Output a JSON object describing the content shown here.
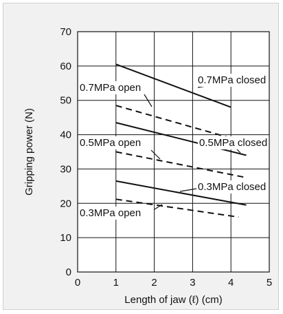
{
  "chart_data": {
    "type": "line",
    "xlabel": "Length of jaw (ℓ) (cm)",
    "ylabel": "Gripping power (N)",
    "xlim": [
      0,
      5
    ],
    "ylim": [
      0,
      70
    ],
    "xticks": [
      0,
      1,
      2,
      3,
      4,
      5
    ],
    "yticks": [
      0,
      10,
      20,
      30,
      40,
      50,
      60,
      70
    ],
    "grid": true,
    "series": [
      {
        "name": "0.7MPa closed",
        "style": "solid",
        "x": [
          1,
          4
        ],
        "y": [
          60.5,
          48
        ]
      },
      {
        "name": "0.7MPa open",
        "style": "dashed",
        "x": [
          1,
          4
        ],
        "y": [
          48.5,
          39
        ]
      },
      {
        "name": "0.5MPa closed",
        "style": "solid",
        "x": [
          1,
          4.4
        ],
        "y": [
          43.5,
          34
        ]
      },
      {
        "name": "0.5MPa open",
        "style": "dashed",
        "x": [
          1,
          4.4
        ],
        "y": [
          35,
          27.5
        ]
      },
      {
        "name": "0.3MPa closed",
        "style": "solid",
        "x": [
          1,
          4.4
        ],
        "y": [
          26.5,
          19.5
        ]
      },
      {
        "name": "0.3MPa open",
        "style": "dashed",
        "x": [
          1,
          4.2
        ],
        "y": [
          21.2,
          16
        ]
      }
    ],
    "annotations": [
      {
        "text": "0.7MPa closed",
        "series": "0.7MPa closed"
      },
      {
        "text": "0.7MPa open",
        "series": "0.7MPa open"
      },
      {
        "text": "0.5MPa open",
        "series": "0.5MPa open"
      },
      {
        "text": "0.5MPa closed",
        "series": "0.5MPa closed"
      },
      {
        "text": "0.3MPa closed",
        "series": "0.3MPa closed"
      },
      {
        "text": "0.3MPa open",
        "series": "0.3MPa open"
      }
    ],
    "colors": {
      "line": "#111111",
      "grid": "#111111",
      "plot_bg": "#ffffff",
      "frame_bg": "#f1f1f1"
    }
  }
}
